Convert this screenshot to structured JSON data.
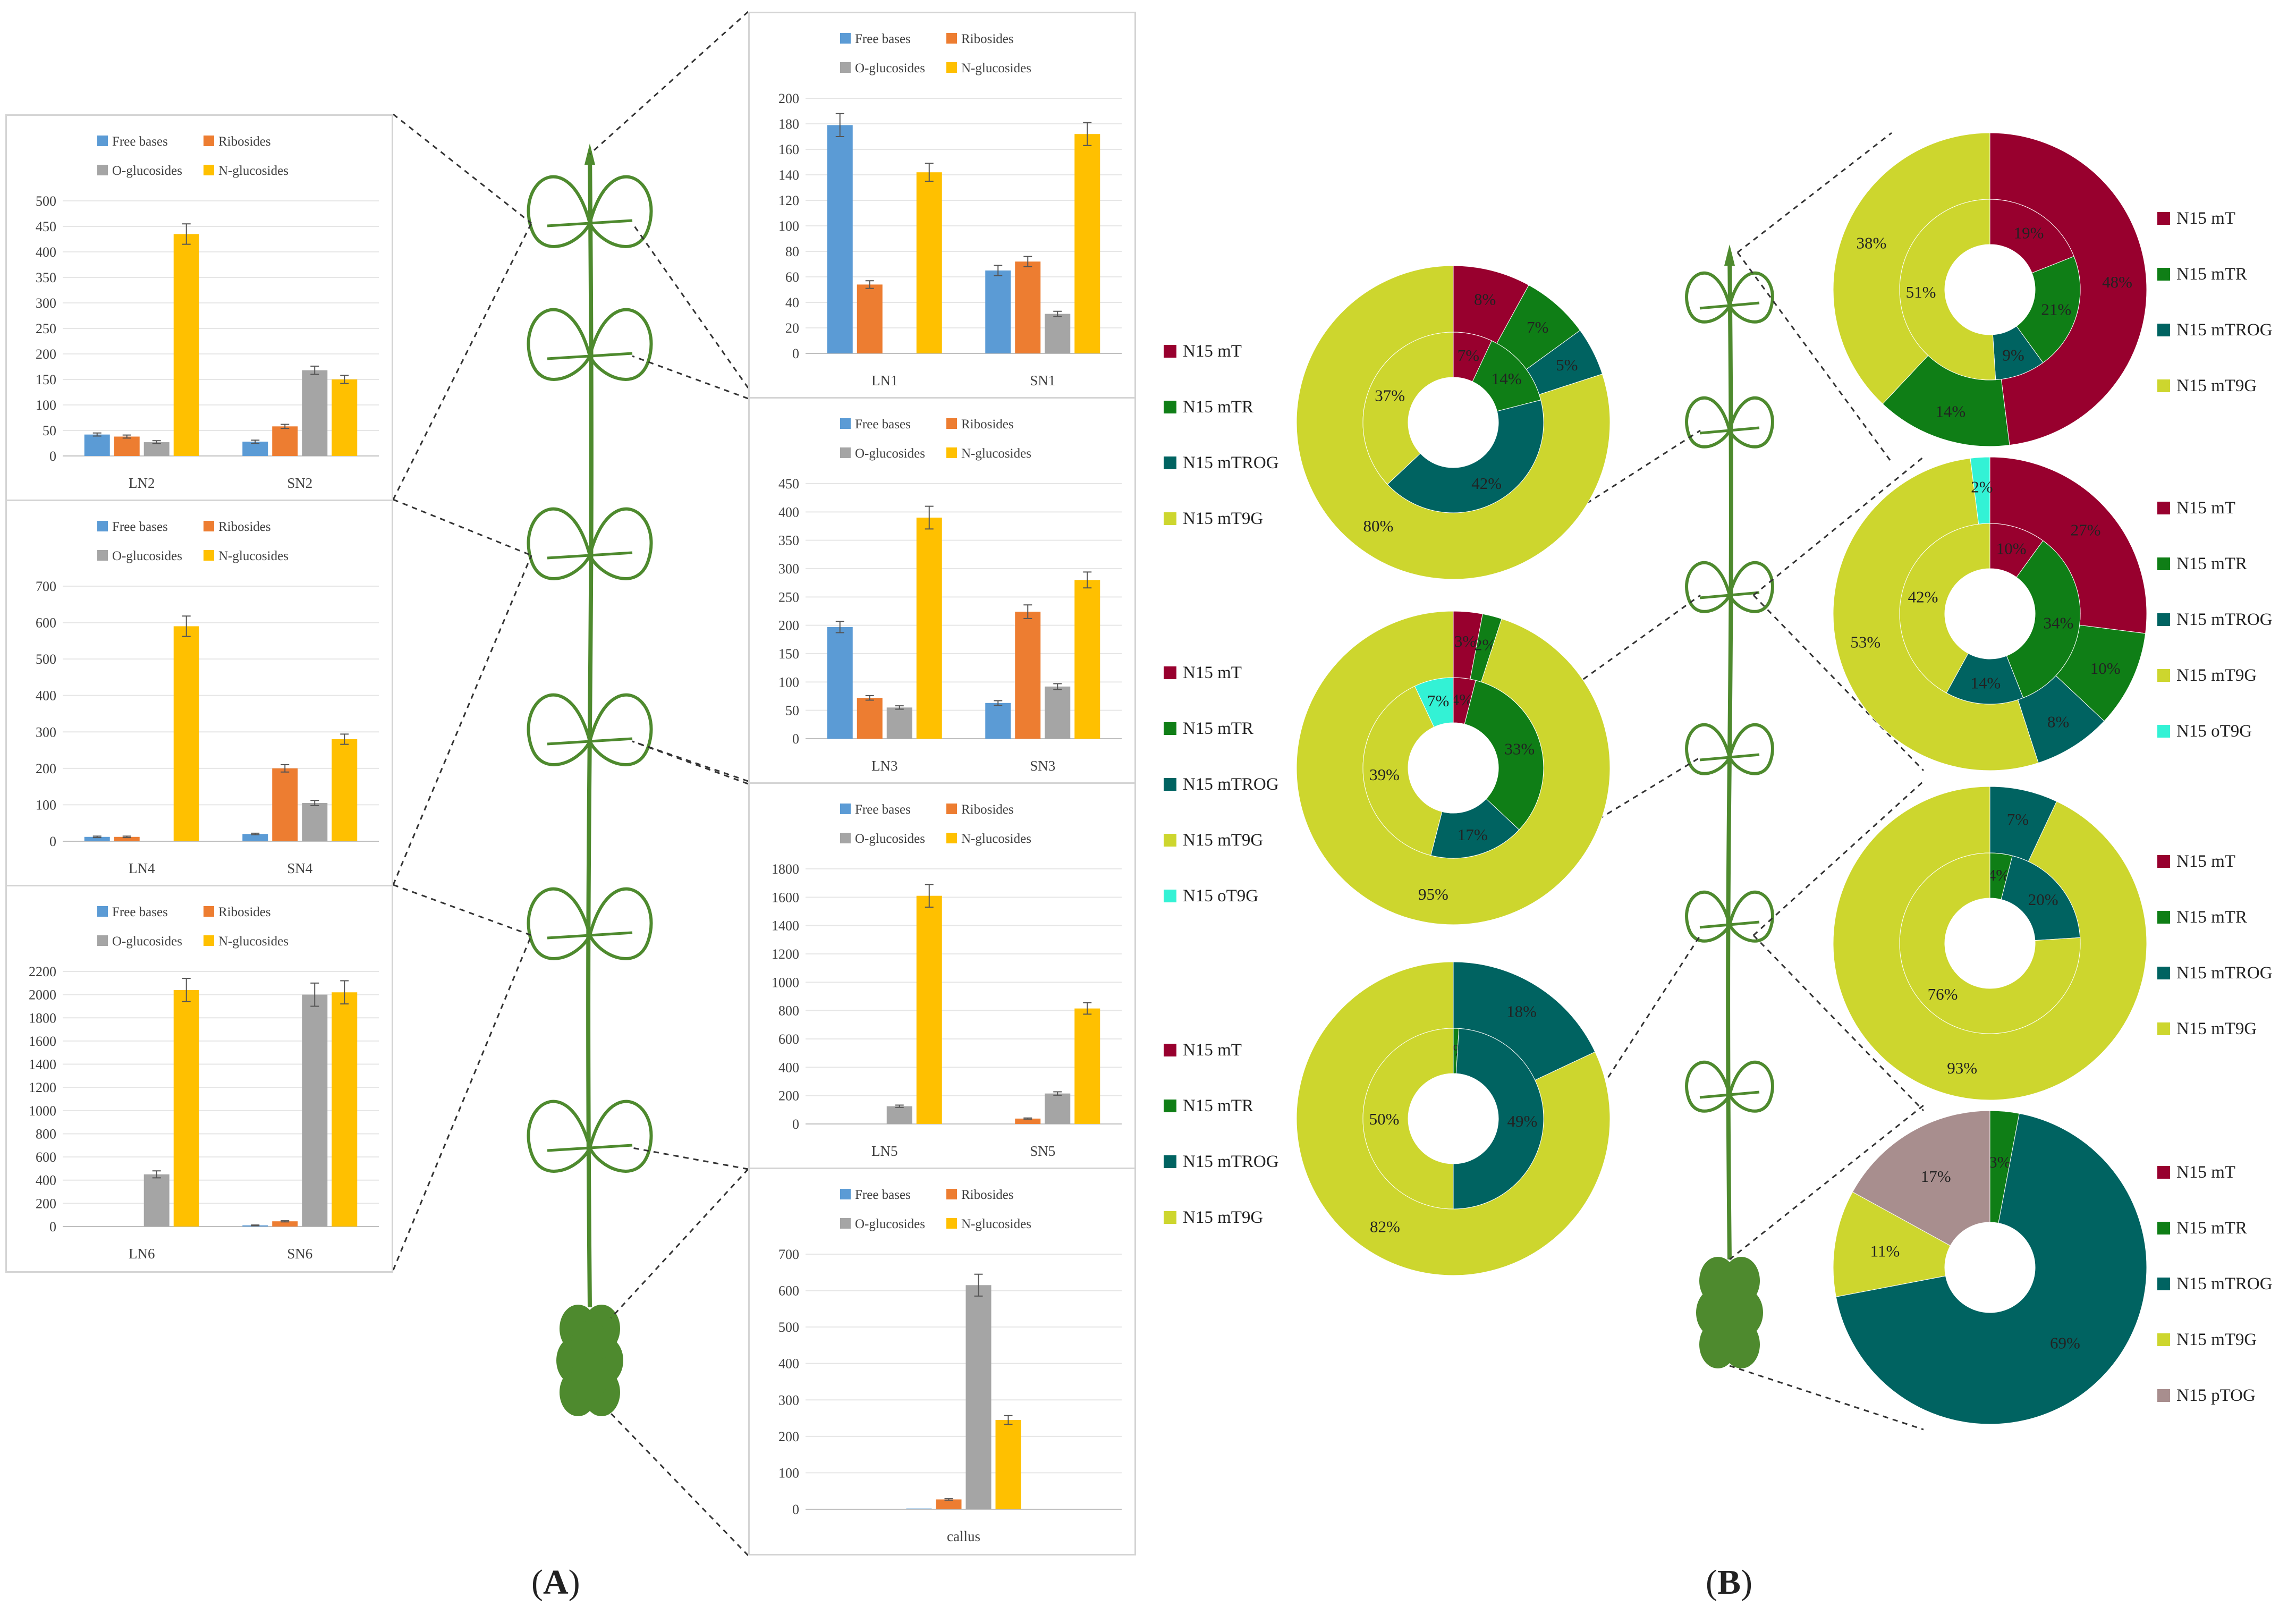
{
  "legend_bar": {
    "free_bases": "Free bases",
    "ribosides": "Ribosides",
    "o_glucosides": "O-glucosides",
    "n_glucosides": "N-glucosides"
  },
  "colors": {
    "free_bases": "#5B9BD5",
    "ribosides": "#ED7D31",
    "o_glucosides": "#A5A5A5",
    "n_glucosides": "#FFC000",
    "mT": "#98002E",
    "mTR": "#0F7E16",
    "mTROG": "#006361",
    "mT9G": "#CDD62E",
    "oT9G": "#33F2D5",
    "pTOG": "#A88E8E",
    "stem": "#4E8A2E"
  },
  "labels": {
    "part_a": "A",
    "part_b": "B"
  },
  "chart_data": [
    {
      "type": "bar",
      "id": "LN2-SN2",
      "categories": [
        "LN2",
        "SN2"
      ],
      "series": [
        {
          "name": "Free bases",
          "values": [
            42,
            28
          ],
          "errors": [
            3,
            3
          ]
        },
        {
          "name": "Ribosides",
          "values": [
            38,
            58
          ],
          "errors": [
            3,
            4
          ]
        },
        {
          "name": "O-glucosides",
          "values": [
            27,
            168
          ],
          "errors": [
            3,
            8
          ]
        },
        {
          "name": "N-glucosides",
          "values": [
            435,
            150
          ],
          "errors": [
            20,
            8
          ]
        }
      ],
      "ylim": [
        0,
        500
      ],
      "yticks": [
        0,
        50,
        100,
        150,
        200,
        250,
        300,
        350,
        400,
        450,
        500
      ]
    },
    {
      "type": "bar",
      "id": "LN4-SN4",
      "categories": [
        "LN4",
        "SN4"
      ],
      "series": [
        {
          "name": "Free bases",
          "values": [
            12,
            20
          ],
          "errors": [
            2,
            2
          ]
        },
        {
          "name": "Ribosides",
          "values": [
            12,
            200
          ],
          "errors": [
            2,
            10
          ]
        },
        {
          "name": "O-glucosides",
          "values": [
            0,
            105
          ],
          "errors": [
            0,
            7
          ]
        },
        {
          "name": "N-glucosides",
          "values": [
            590,
            280
          ],
          "errors": [
            28,
            14
          ]
        }
      ],
      "ylim": [
        0,
        700
      ],
      "yticks": [
        0,
        100,
        200,
        300,
        400,
        500,
        600,
        700
      ]
    },
    {
      "type": "bar",
      "id": "LN6-SN6",
      "categories": [
        "LN6",
        "SN6"
      ],
      "series": [
        {
          "name": "Free bases",
          "values": [
            0,
            10
          ],
          "errors": [
            0,
            3
          ]
        },
        {
          "name": "Ribosides",
          "values": [
            0,
            45
          ],
          "errors": [
            0,
            5
          ]
        },
        {
          "name": "O-glucosides",
          "values": [
            450,
            2000
          ],
          "errors": [
            30,
            100
          ]
        },
        {
          "name": "N-glucosides",
          "values": [
            2040,
            2020
          ],
          "errors": [
            100,
            100
          ]
        }
      ],
      "ylim": [
        0,
        2200
      ],
      "yticks": [
        0,
        200,
        400,
        600,
        800,
        1000,
        1200,
        1400,
        1600,
        1800,
        2000,
        2200
      ]
    },
    {
      "type": "bar",
      "id": "LN1-SN1",
      "categories": [
        "LN1",
        "SN1"
      ],
      "series": [
        {
          "name": "Free bases",
          "values": [
            179,
            65
          ],
          "errors": [
            9,
            4
          ]
        },
        {
          "name": "Ribosides",
          "values": [
            54,
            72
          ],
          "errors": [
            3,
            4
          ]
        },
        {
          "name": "O-glucosides",
          "values": [
            0,
            31
          ],
          "errors": [
            0,
            2
          ]
        },
        {
          "name": "N-glucosides",
          "values": [
            142,
            172
          ],
          "errors": [
            7,
            9
          ]
        }
      ],
      "ylim": [
        0,
        200
      ],
      "yticks": [
        0,
        20,
        40,
        60,
        80,
        100,
        120,
        140,
        160,
        180,
        200
      ]
    },
    {
      "type": "bar",
      "id": "LN3-SN3",
      "categories": [
        "LN3",
        "SN3"
      ],
      "series": [
        {
          "name": "Free bases",
          "values": [
            197,
            63
          ],
          "errors": [
            10,
            4
          ]
        },
        {
          "name": "Ribosides",
          "values": [
            72,
            224
          ],
          "errors": [
            4,
            12
          ]
        },
        {
          "name": "O-glucosides",
          "values": [
            55,
            92
          ],
          "errors": [
            3,
            5
          ]
        },
        {
          "name": "N-glucosides",
          "values": [
            390,
            280
          ],
          "errors": [
            20,
            14
          ]
        }
      ],
      "ylim": [
        0,
        450
      ],
      "yticks": [
        0,
        50,
        100,
        150,
        200,
        250,
        300,
        350,
        400,
        450
      ]
    },
    {
      "type": "bar",
      "id": "LN5-SN5",
      "categories": [
        "LN5",
        "SN5"
      ],
      "series": [
        {
          "name": "Free bases",
          "values": [
            0,
            0
          ],
          "errors": [
            0,
            0
          ]
        },
        {
          "name": "Ribosides",
          "values": [
            0,
            38
          ],
          "errors": [
            0,
            4
          ]
        },
        {
          "name": "O-glucosides",
          "values": [
            125,
            215
          ],
          "errors": [
            8,
            12
          ]
        },
        {
          "name": "N-glucosides",
          "values": [
            1610,
            815
          ],
          "errors": [
            80,
            40
          ]
        }
      ],
      "ylim": [
        0,
        1800
      ],
      "yticks": [
        0,
        200,
        400,
        600,
        800,
        1000,
        1200,
        1400,
        1600,
        1800
      ]
    },
    {
      "type": "bar",
      "id": "callus",
      "categories": [
        "callus"
      ],
      "series": [
        {
          "name": "Free bases",
          "values": [
            2
          ],
          "errors": [
            0
          ]
        },
        {
          "name": "Ribosides",
          "values": [
            27
          ],
          "errors": [
            2
          ]
        },
        {
          "name": "O-glucosides",
          "values": [
            615
          ],
          "errors": [
            30
          ]
        },
        {
          "name": "N-glucosides",
          "values": [
            245
          ],
          "errors": [
            12
          ]
        }
      ],
      "ylim": [
        0,
        700
      ],
      "yticks": [
        0,
        100,
        200,
        300,
        400,
        500,
        600,
        700
      ]
    },
    {
      "type": "pie",
      "id": "pie-L1",
      "legend": [
        "N15 mT",
        "N15 mTR",
        "N15 mTROG",
        "N15 mT9G"
      ],
      "inner": [
        {
          "label": "N15 mT",
          "value": 7
        },
        {
          "label": "N15 mTR",
          "value": 14
        },
        {
          "label": "N15 mTROG",
          "value": 42
        },
        {
          "label": "N15 mT9G",
          "value": 37
        }
      ],
      "outer": [
        {
          "label": "N15 mT",
          "value": 8
        },
        {
          "label": "N15 mTR",
          "value": 7
        },
        {
          "label": "N15 mTROG",
          "value": 5
        },
        {
          "label": "N15 mT9G",
          "value": 80
        }
      ]
    },
    {
      "type": "pie",
      "id": "pie-L3",
      "legend": [
        "N15 mT",
        "N15 mTR",
        "N15 mTROG",
        "N15 mT9G",
        "N15 oT9G"
      ],
      "inner": [
        {
          "label": "N15 mT",
          "value": 4
        },
        {
          "label": "N15 mTR",
          "value": 33
        },
        {
          "label": "N15 mTROG",
          "value": 17
        },
        {
          "label": "N15 mT9G",
          "value": 39
        },
        {
          "label": "N15 oT9G",
          "value": 7
        }
      ],
      "outer": [
        {
          "label": "N15 mT",
          "value": 3
        },
        {
          "label": "N15 mTR",
          "value": 2
        },
        {
          "label": "N15 mTROG",
          "value": 0
        },
        {
          "label": "N15 mT9G",
          "value": 95
        },
        {
          "label": "N15 oT9G",
          "value": 0
        }
      ]
    },
    {
      "type": "pie",
      "id": "pie-L5",
      "legend": [
        "N15 mT",
        "N15 mTR",
        "N15 mTROG",
        "N15 mT9G"
      ],
      "inner": [
        {
          "label": "N15 mT",
          "value": 0
        },
        {
          "label": "N15 mTR",
          "value": 1
        },
        {
          "label": "N15 mTROG",
          "value": 49
        },
        {
          "label": "N15 mT9G",
          "value": 50
        }
      ],
      "outer": [
        {
          "label": "N15 mT",
          "value": 0
        },
        {
          "label": "N15 mTR",
          "value": 0
        },
        {
          "label": "N15 mTROG",
          "value": 18
        },
        {
          "label": "N15 mT9G",
          "value": 82
        }
      ]
    },
    {
      "type": "pie",
      "id": "pie-S1",
      "legend": [
        "N15 mT",
        "N15 mTR",
        "N15 mTROG",
        "N15 mT9G"
      ],
      "inner": [
        {
          "label": "N15 mT",
          "value": 19
        },
        {
          "label": "N15 mTR",
          "value": 21
        },
        {
          "label": "N15 mTROG",
          "value": 9
        },
        {
          "label": "N15 mT9G",
          "value": 51
        }
      ],
      "outer": [
        {
          "label": "N15 mT",
          "value": 48
        },
        {
          "label": "N15 mTR",
          "value": 14
        },
        {
          "label": "N15 mTROG",
          "value": 0
        },
        {
          "label": "N15 mT9G",
          "value": 38
        }
      ]
    },
    {
      "type": "pie",
      "id": "pie-S3",
      "legend": [
        "N15 mT",
        "N15 mTR",
        "N15 mTROG",
        "N15 mT9G",
        "N15 oT9G"
      ],
      "inner": [
        {
          "label": "N15 mT",
          "value": 10
        },
        {
          "label": "N15 mTR",
          "value": 34
        },
        {
          "label": "N15 mTROG",
          "value": 14
        },
        {
          "label": "N15 mT9G",
          "value": 42
        },
        {
          "label": "N15 oT9G",
          "value": 0
        }
      ],
      "outer": [
        {
          "label": "N15 mT",
          "value": 27
        },
        {
          "label": "N15 mTR",
          "value": 10
        },
        {
          "label": "N15 mTROG",
          "value": 8
        },
        {
          "label": "N15 mT9G",
          "value": 53
        },
        {
          "label": "N15 oT9G",
          "value": 2
        }
      ]
    },
    {
      "type": "pie",
      "id": "pie-S5",
      "legend": [
        "N15 mT",
        "N15 mTR",
        "N15 mTROG",
        "N15 mT9G"
      ],
      "inner": [
        {
          "label": "N15 mT",
          "value": 0
        },
        {
          "label": "N15 mTR",
          "value": 4
        },
        {
          "label": "N15 mTROG",
          "value": 20
        },
        {
          "label": "N15 mT9G",
          "value": 76
        }
      ],
      "outer": [
        {
          "label": "N15 mT",
          "value": 0
        },
        {
          "label": "N15 mTR",
          "value": 0
        },
        {
          "label": "N15 mTROG",
          "value": 7
        },
        {
          "label": "N15 mT9G",
          "value": 93
        }
      ]
    },
    {
      "type": "pie",
      "id": "pie-callus",
      "legend": [
        "N15 mT",
        "N15 mTR",
        "N15 mTROG",
        "N15 mT9G",
        "N15 pTOG"
      ],
      "single": [
        {
          "label": "N15 mT",
          "value": 0
        },
        {
          "label": "N15 mTR",
          "value": 3
        },
        {
          "label": "N15 mTROG",
          "value": 69
        },
        {
          "label": "N15 mT9G",
          "value": 11
        },
        {
          "label": "N15 pTOG",
          "value": 17
        }
      ]
    }
  ]
}
